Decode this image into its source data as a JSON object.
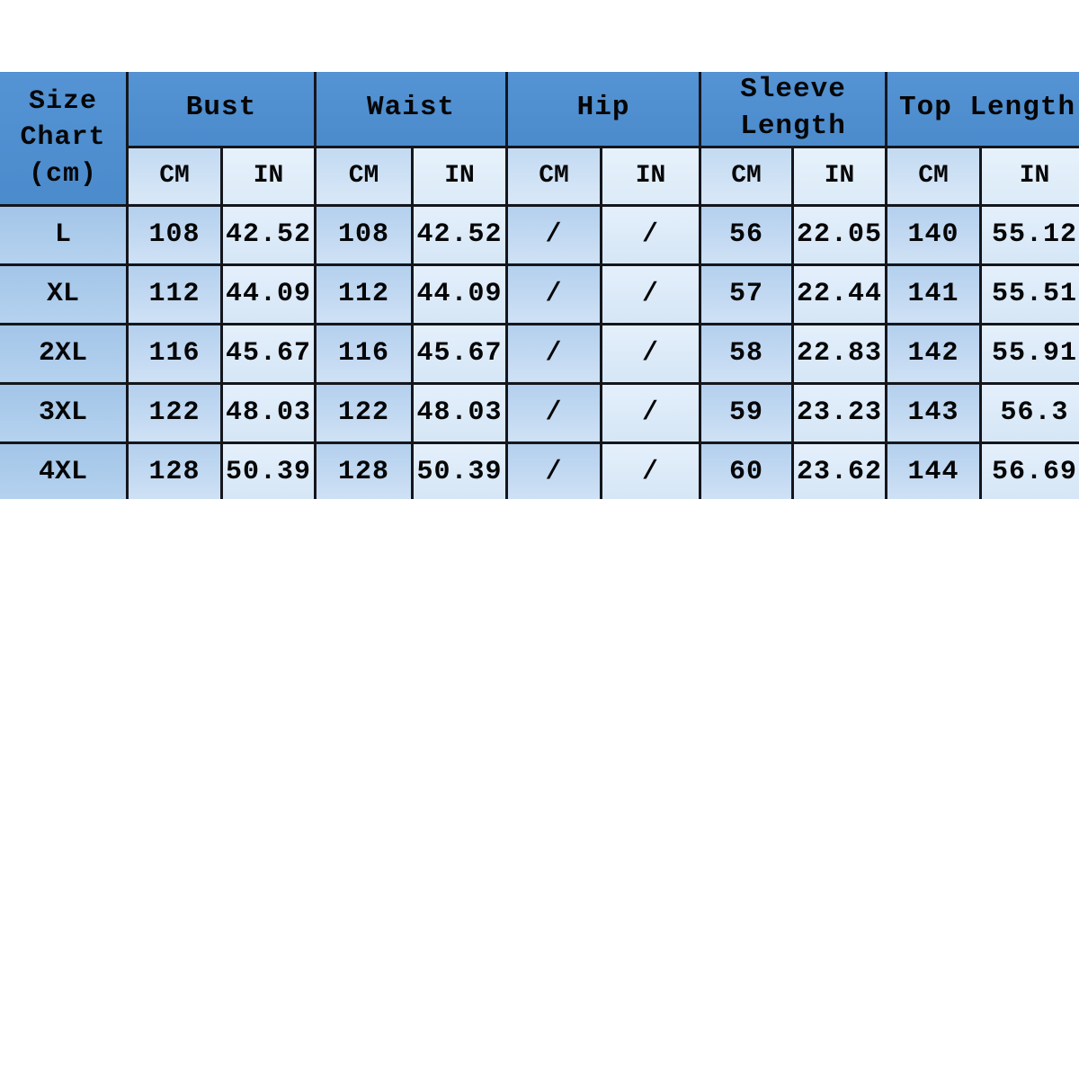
{
  "table": {
    "corner_label": "Size\nChart\n(cm)",
    "groups": [
      {
        "label": "Bust"
      },
      {
        "label": "Waist"
      },
      {
        "label": "Hip"
      },
      {
        "label": "Sleeve\nLength"
      },
      {
        "label": "Top Length"
      }
    ],
    "unit_headers": [
      "CM",
      "IN",
      "CM",
      "IN",
      "CM",
      "IN",
      "CM",
      "IN",
      "CM",
      "IN"
    ],
    "rows": [
      {
        "size": "L",
        "values": [
          "108",
          "42.52",
          "108",
          "42.52",
          "/",
          "/",
          "56",
          "22.05",
          "140",
          "55.12"
        ]
      },
      {
        "size": "XL",
        "values": [
          "112",
          "44.09",
          "112",
          "44.09",
          "/",
          "/",
          "57",
          "22.44",
          "141",
          "55.51"
        ]
      },
      {
        "size": "2XL",
        "values": [
          "116",
          "45.67",
          "116",
          "45.67",
          "/",
          "/",
          "58",
          "22.83",
          "142",
          "55.91"
        ]
      },
      {
        "size": "3XL",
        "values": [
          "122",
          "48.03",
          "122",
          "48.03",
          "/",
          "/",
          "59",
          "23.23",
          "143",
          "56.3"
        ]
      },
      {
        "size": "4XL",
        "values": [
          "128",
          "50.39",
          "128",
          "50.39",
          "/",
          "/",
          "60",
          "23.62",
          "144",
          "56.69"
        ]
      }
    ],
    "colors": {
      "header_blue": "#4e8ecf",
      "size_column_blue": "#aecdec",
      "cm_cell_blue": "#c2d9f1",
      "in_cell_blue": "#ddebf8",
      "grid_border": "#14161c"
    }
  }
}
